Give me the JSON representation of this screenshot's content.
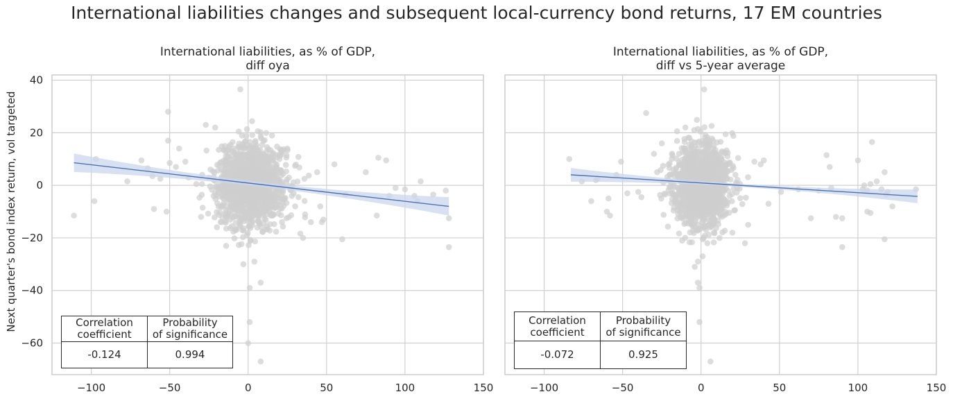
{
  "title": "International liabilities changes and subsequent local-currency bond returns, 17 EM countries",
  "ylabel": "Next quarter's bond index return, vol targeted",
  "colors": {
    "points": "#cfcfcf",
    "line": "#4c72b0",
    "band": "#c9d7ee",
    "grid": "#d0d0d0"
  },
  "chart_data": [
    {
      "type": "scatter",
      "title_lines": [
        "International liabilities, as % of GDP,",
        "diff oya"
      ],
      "xlim": [
        -125,
        150
      ],
      "ylim": [
        -72,
        42
      ],
      "xticks": [
        -100,
        -50,
        0,
        50,
        100,
        150
      ],
      "xtick_labels": [
        "−100",
        "−50",
        "0",
        "50",
        "100",
        "150"
      ],
      "yticks": [
        -60,
        -40,
        -20,
        0,
        20,
        40
      ],
      "ytick_labels": [
        "−60",
        "−40",
        "−20",
        "0",
        "20",
        "40"
      ],
      "grid": true,
      "regression": {
        "x0": -111,
        "y0": 8.6,
        "x1": 128,
        "y1": -8.0,
        "ci_halfwidth_ends": 3.5,
        "ci_halfwidth_mid": 0.9
      },
      "outliers": [
        [
          -111,
          -11.5
        ],
        [
          -98,
          -6
        ],
        [
          -97,
          10
        ],
        [
          -77,
          1.5
        ],
        [
          -68,
          9.5
        ],
        [
          -64,
          6.5
        ],
        [
          -61,
          3.5
        ],
        [
          -56,
          2.5
        ],
        [
          -52,
          -10
        ],
        [
          -51,
          17
        ],
        [
          -51,
          28
        ],
        [
          -50,
          8.5
        ],
        [
          -46,
          7
        ],
        [
          -38,
          3
        ],
        [
          -33,
          0.5
        ],
        [
          -30,
          -12
        ],
        [
          -29,
          -8.5
        ],
        [
          -27,
          23
        ],
        [
          -24,
          6
        ],
        [
          -21,
          22
        ],
        [
          -17,
          -14
        ],
        [
          -14,
          -23
        ],
        [
          -5,
          36.5
        ],
        [
          1,
          -39
        ],
        [
          1,
          -52
        ],
        [
          0,
          -60
        ],
        [
          8,
          -37
        ],
        [
          8,
          -67
        ],
        [
          -3,
          -30
        ],
        [
          4,
          -29
        ],
        [
          35,
          -20
        ],
        [
          40,
          -14
        ],
        [
          44,
          5
        ],
        [
          46,
          -8
        ],
        [
          47,
          -14
        ],
        [
          48,
          -13
        ],
        [
          62,
          -3.5
        ],
        [
          75,
          5
        ],
        [
          82,
          -11.5
        ],
        [
          83,
          10.5
        ],
        [
          88,
          9.5
        ],
        [
          90,
          -4
        ],
        [
          94,
          -1
        ],
        [
          100,
          -1.5
        ],
        [
          106,
          -4
        ],
        [
          108,
          -6
        ],
        [
          110,
          1.5
        ],
        [
          118,
          -3.5
        ],
        [
          126,
          -2
        ],
        [
          128,
          -12.5
        ],
        [
          128,
          -23.5
        ],
        [
          60,
          -20.5
        ],
        [
          30,
          -8
        ],
        [
          25,
          14
        ],
        [
          55,
          8
        ],
        [
          -60,
          -9
        ],
        [
          -40,
          9
        ],
        [
          -44,
          14
        ]
      ],
      "cluster": {
        "x_mean": 2,
        "x_sd": 11,
        "y_mean": 0,
        "y_sd": 8,
        "n": 1300,
        "seed": 7
      },
      "table": {
        "headers": [
          "Correlation\ncoefficient",
          "Probability\nof significance"
        ],
        "values": [
          "-0.124",
          "0.994"
        ]
      }
    },
    {
      "type": "scatter",
      "title_lines": [
        "International liabilities, as % of GDP,",
        "diff vs 5-year average"
      ],
      "xlim": [
        -125,
        150
      ],
      "ylim": [
        -72,
        42
      ],
      "xticks": [
        -100,
        -50,
        0,
        50,
        100,
        150
      ],
      "xtick_labels": [
        "−100",
        "−50",
        "0",
        "50",
        "100",
        "150"
      ],
      "yticks": [
        -60,
        -40,
        -20,
        0,
        20,
        40
      ],
      "ytick_labels": [],
      "grid": true,
      "regression": {
        "x0": -83,
        "y0": 4.0,
        "x1": 138,
        "y1": -4.2,
        "ci_halfwidth_ends": 2.6,
        "ci_halfwidth_mid": 0.6
      },
      "outliers": [
        [
          -84,
          10
        ],
        [
          -76,
          1.5
        ],
        [
          -70,
          -6
        ],
        [
          -67,
          2
        ],
        [
          -66,
          2.5
        ],
        [
          -60,
          -10
        ],
        [
          -59,
          -5
        ],
        [
          -58,
          -11.5
        ],
        [
          -54,
          4
        ],
        [
          -51,
          9
        ],
        [
          -47,
          -3
        ],
        [
          -40,
          -2.5
        ],
        [
          -38,
          -4.5
        ],
        [
          -35,
          27.5
        ],
        [
          -30,
          12
        ],
        [
          -28,
          5
        ],
        [
          -25,
          16
        ],
        [
          -20,
          4
        ],
        [
          -18,
          -3
        ],
        [
          -14,
          12
        ],
        [
          -12,
          -21
        ],
        [
          -10,
          22
        ],
        [
          2,
          36.5
        ],
        [
          -2,
          -37
        ],
        [
          -1,
          -39
        ],
        [
          -2,
          -29
        ],
        [
          -4,
          -31
        ],
        [
          6,
          -67
        ],
        [
          -1,
          -52
        ],
        [
          1,
          -27
        ],
        [
          4,
          -22
        ],
        [
          28,
          -22
        ],
        [
          34,
          9
        ],
        [
          38,
          8
        ],
        [
          40,
          9.5
        ],
        [
          43,
          -7
        ],
        [
          51,
          -2.5
        ],
        [
          62,
          -1.5
        ],
        [
          70,
          -12.5
        ],
        [
          75,
          -2
        ],
        [
          80,
          11.5
        ],
        [
          82,
          7
        ],
        [
          83,
          -1
        ],
        [
          86,
          -12
        ],
        [
          90,
          -12.5
        ],
        [
          90,
          -23.5
        ],
        [
          100,
          9.5
        ],
        [
          103,
          -1.5
        ],
        [
          104,
          0
        ],
        [
          106,
          -2
        ],
        [
          106,
          -10
        ],
        [
          108,
          0.5
        ],
        [
          108,
          -10.5
        ],
        [
          109,
          16.5
        ],
        [
          112,
          1.5
        ],
        [
          115,
          -1.5
        ],
        [
          117,
          5
        ],
        [
          117,
          -20.5
        ],
        [
          118,
          -3.5
        ],
        [
          119,
          -2.5
        ],
        [
          122,
          -8
        ],
        [
          137,
          -1.5
        ],
        [
          30,
          -15
        ],
        [
          20,
          -18
        ]
      ],
      "cluster": {
        "x_mean": 0,
        "x_sd": 9,
        "y_mean": 0,
        "y_sd": 7.5,
        "n": 1400,
        "seed": 13
      },
      "table": {
        "headers": [
          "Correlation\ncoefficient",
          "Probability\nof significance"
        ],
        "values": [
          "-0.072",
          "0.925"
        ]
      }
    }
  ]
}
